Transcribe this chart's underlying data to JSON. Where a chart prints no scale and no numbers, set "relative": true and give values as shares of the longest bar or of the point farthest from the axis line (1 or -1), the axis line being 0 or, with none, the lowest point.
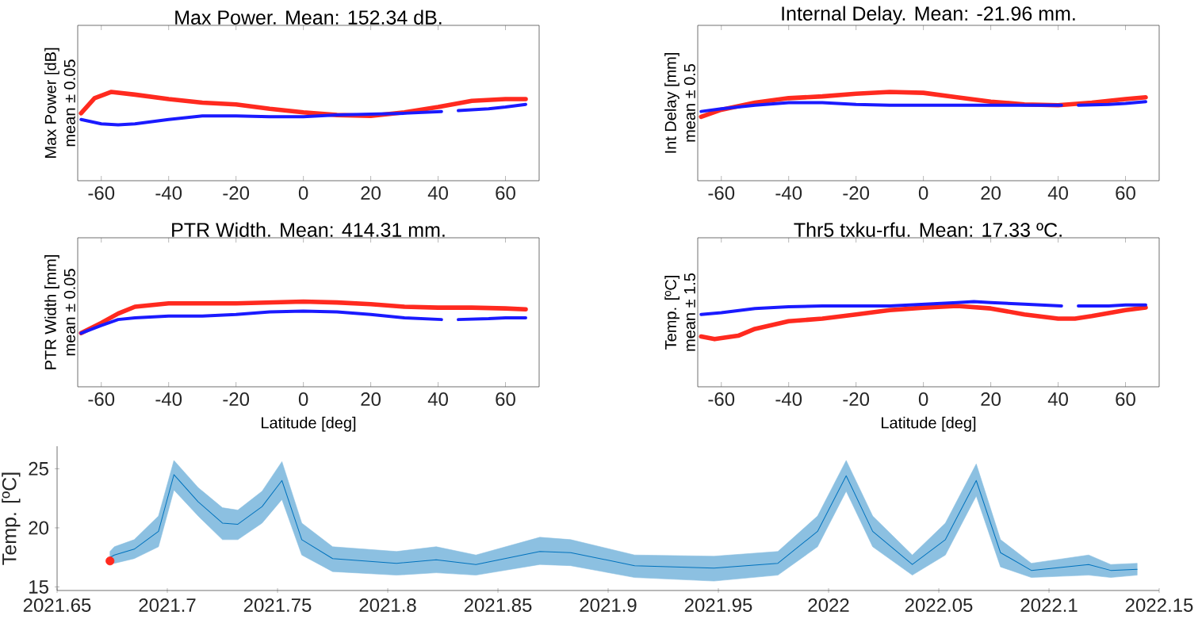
{
  "chart_data": [
    {
      "type": "line",
      "relative": true,
      "title": "Max Power. Mean: 152.34 dB.",
      "ylabel": "Max Power [dB]",
      "annotations": [
        "mean ± 0.05"
      ],
      "xlim": [
        -67,
        70
      ],
      "xticks": [
        -60,
        -40,
        -20,
        0,
        20,
        40,
        60
      ],
      "tick_labels": "x",
      "series": [
        {
          "color": "#ff2a1f",
          "x": [
            -66,
            -62,
            -57,
            -50,
            -40,
            -30,
            -20,
            -10,
            0,
            10,
            20,
            30,
            40,
            50,
            60,
            66
          ],
          "values": [
            0.76,
            0.93,
            1.0,
            0.97,
            0.92,
            0.88,
            0.86,
            0.81,
            0.77,
            0.74,
            0.73,
            0.77,
            0.83,
            0.9,
            0.92,
            0.92
          ]
        },
        {
          "color": "#1a1aff",
          "x": [
            -66,
            -60,
            -55,
            -50,
            -40,
            -30,
            -20,
            -10,
            0,
            10,
            20,
            30,
            41,
            43.5,
            46,
            55,
            60,
            66
          ],
          "values": [
            0.69,
            0.64,
            0.63,
            0.64,
            0.69,
            0.73,
            0.73,
            0.72,
            0.72,
            0.74,
            0.75,
            0.76,
            0.78,
            null,
            0.79,
            0.81,
            0.83,
            0.86
          ]
        }
      ]
    },
    {
      "type": "line",
      "relative": true,
      "title": "Internal Delay. Mean: -21.96 mm.",
      "ylabel": "Int Delay [mm]",
      "annotations": [
        "mean ± 0.5"
      ],
      "xlim": [
        -67,
        70
      ],
      "xticks": [
        -60,
        -40,
        -20,
        0,
        20,
        40,
        60
      ],
      "tick_labels": "x",
      "series": [
        {
          "color": "#ff2a1f",
          "x": [
            -66,
            -60,
            -50,
            -40,
            -30,
            -20,
            -10,
            0,
            10,
            20,
            30,
            40,
            50,
            60,
            66
          ],
          "values": [
            0.72,
            0.8,
            0.88,
            0.93,
            0.95,
            0.98,
            1.0,
            0.99,
            0.94,
            0.89,
            0.86,
            0.85,
            0.88,
            0.92,
            0.94
          ]
        },
        {
          "color": "#1a1aff",
          "x": [
            -66,
            -60,
            -50,
            -40,
            -30,
            -20,
            -10,
            0,
            10,
            20,
            30,
            41,
            43.5,
            46,
            55,
            60,
            66
          ],
          "values": [
            0.78,
            0.81,
            0.85,
            0.88,
            0.88,
            0.86,
            0.85,
            0.85,
            0.85,
            0.85,
            0.85,
            0.85,
            null,
            0.85,
            0.86,
            0.87,
            0.89
          ]
        }
      ]
    },
    {
      "type": "line",
      "relative": true,
      "title": "PTR Width. Mean: 414.31 mm.",
      "ylabel": "PTR Width [mm]",
      "annotations": [
        "mean ± 0.05"
      ],
      "xlabel": "Latitude [deg]",
      "xlim": [
        -67,
        70
      ],
      "xticks": [
        -60,
        -40,
        -20,
        0,
        20,
        40,
        60
      ],
      "tick_labels": "x",
      "series": [
        {
          "color": "#ff2a1f",
          "x": [
            -66,
            -60,
            -55,
            -50,
            -40,
            -20,
            -10,
            0,
            10,
            20,
            30,
            40,
            50,
            60,
            66
          ],
          "values": [
            0.63,
            0.75,
            0.86,
            0.94,
            0.98,
            0.98,
            0.99,
            1.0,
            0.99,
            0.97,
            0.94,
            0.93,
            0.93,
            0.92,
            0.91
          ]
        },
        {
          "color": "#1a1aff",
          "x": [
            -66,
            -60,
            -55,
            -50,
            -40,
            -30,
            -20,
            -10,
            0,
            10,
            20,
            30,
            41,
            43.5,
            46,
            55,
            60,
            66
          ],
          "values": [
            0.63,
            0.72,
            0.79,
            0.81,
            0.83,
            0.83,
            0.85,
            0.88,
            0.89,
            0.88,
            0.85,
            0.81,
            0.79,
            null,
            0.79,
            0.8,
            0.81,
            0.81
          ]
        }
      ]
    },
    {
      "type": "line",
      "relative": true,
      "title": "Thr5 txku-rfu. Mean: 17.33 ºC.",
      "ylabel": "Temp. [ºC]",
      "annotations": [
        "mean ± 1.5"
      ],
      "xlabel": "Latitude [deg]",
      "xlim": [
        -67,
        70
      ],
      "xticks": [
        -60,
        -40,
        -20,
        0,
        20,
        40,
        60
      ],
      "tick_labels": "x",
      "series": [
        {
          "color": "#ff2a1f",
          "x": [
            -66,
            -62,
            -55,
            -50,
            -40,
            -30,
            -20,
            -10,
            0,
            10,
            20,
            30,
            40,
            45,
            50,
            60,
            66
          ],
          "values": [
            0.59,
            0.56,
            0.6,
            0.68,
            0.77,
            0.8,
            0.85,
            0.9,
            0.93,
            0.95,
            0.92,
            0.85,
            0.8,
            0.8,
            0.83,
            0.9,
            0.93
          ]
        },
        {
          "color": "#1a1aff",
          "x": [
            -66,
            -60,
            -50,
            -40,
            -30,
            -20,
            -10,
            0,
            10,
            15,
            20,
            30,
            41,
            43.5,
            46,
            55,
            60,
            66
          ],
          "values": [
            0.85,
            0.87,
            0.92,
            0.94,
            0.95,
            0.95,
            0.95,
            0.97,
            0.99,
            1.0,
            0.99,
            0.97,
            0.95,
            null,
            0.95,
            0.95,
            0.96,
            0.96
          ]
        }
      ]
    },
    {
      "type": "line",
      "ylabel": "Temp. [ºC]",
      "xlim": [
        2021.65,
        2022.15
      ],
      "ylim": [
        14.7,
        26.9
      ],
      "xticks": [
        2021.65,
        2021.7,
        2021.75,
        2021.8,
        2021.85,
        2021.9,
        2021.95,
        2022,
        2022.05,
        2022.1,
        2022.15
      ],
      "yticks": [
        15,
        20,
        25
      ],
      "series": [
        {
          "color": "#0072bd",
          "x": [
            2021.674,
            2021.676,
            2021.685,
            2021.696,
            2021.703,
            2021.714,
            2021.725,
            2021.732,
            2021.743,
            2021.752,
            2021.761,
            2021.775,
            2021.804,
            2021.822,
            2021.84,
            2021.869,
            2021.883,
            2021.912,
            2021.948,
            2021.977,
            2021.995,
            2022.008,
            2022.02,
            2022.038,
            2022.053,
            2022.067,
            2022.078,
            2022.092,
            2022.118,
            2022.128,
            2022.14
          ],
          "values": [
            17.5,
            17.7,
            18.2,
            19.7,
            24.5,
            22.2,
            20.4,
            20.3,
            21.8,
            24,
            19,
            17.4,
            17,
            17.3,
            16.9,
            18,
            17.9,
            16.8,
            16.6,
            17,
            19.7,
            24.4,
            19.7,
            16.9,
            19,
            24,
            17.9,
            16.4,
            16.9,
            16.4,
            16.5
          ],
          "lower": [
            17.0,
            17.0,
            17.4,
            18.4,
            23.2,
            21,
            19,
            19,
            20.4,
            22.4,
            17.7,
            16.3,
            16,
            16.2,
            16,
            16.9,
            16.8,
            15.8,
            15.5,
            16,
            18.4,
            23.1,
            18.4,
            16,
            17.7,
            22.7,
            16.7,
            15.8,
            16,
            15.8,
            16
          ],
          "upper": [
            18.0,
            18.4,
            19,
            21,
            25.7,
            23.4,
            21.7,
            21.5,
            23.1,
            25.6,
            20.4,
            18.4,
            18,
            18.4,
            17.7,
            19.2,
            19,
            17.7,
            17.6,
            18,
            21,
            25.7,
            21,
            17.7,
            20.4,
            25.4,
            19,
            17,
            17.7,
            16.9,
            17
          ]
        },
        {
          "type": "scatter",
          "marker": "circle",
          "color": "#ff2a1f",
          "x": [
            2021.674
          ],
          "values": [
            17.2
          ]
        }
      ]
    }
  ]
}
